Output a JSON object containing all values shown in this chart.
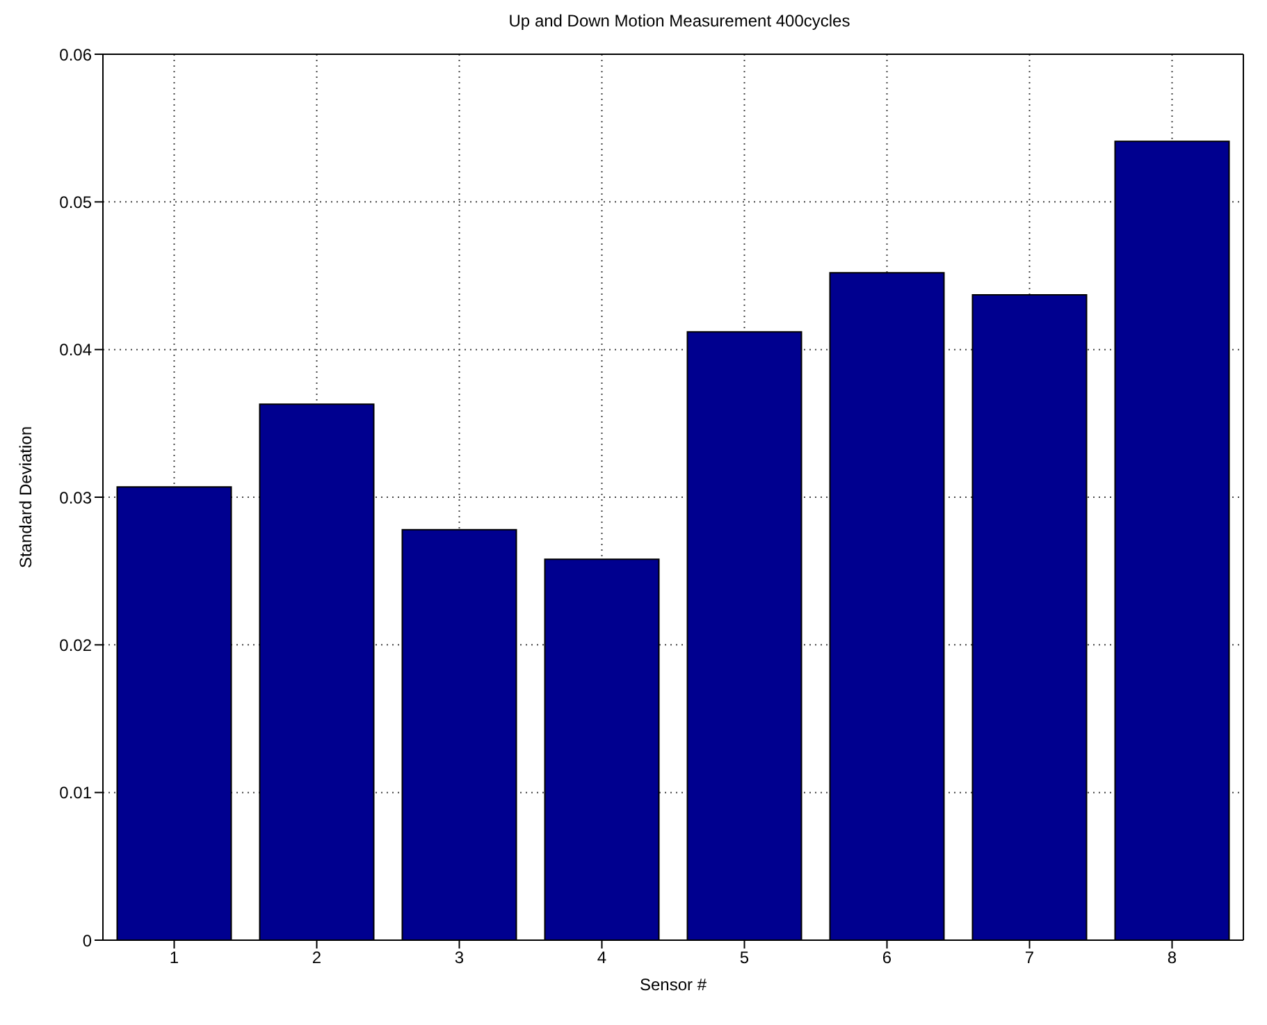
{
  "chart_data": {
    "type": "bar",
    "title": "Up and Down Motion Measurement 400cycles",
    "xlabel": "Sensor #",
    "ylabel": "Standard Deviation",
    "categories": [
      "1",
      "2",
      "3",
      "4",
      "5",
      "6",
      "7",
      "8"
    ],
    "values": [
      0.0307,
      0.0363,
      0.0278,
      0.0258,
      0.0412,
      0.0452,
      0.0437,
      0.0541
    ],
    "color": "#00008f",
    "ylim": [
      0,
      0.06
    ],
    "yticks": [
      0,
      0.01,
      0.02,
      0.03,
      0.04,
      0.05,
      0.06
    ],
    "grid": true
  }
}
